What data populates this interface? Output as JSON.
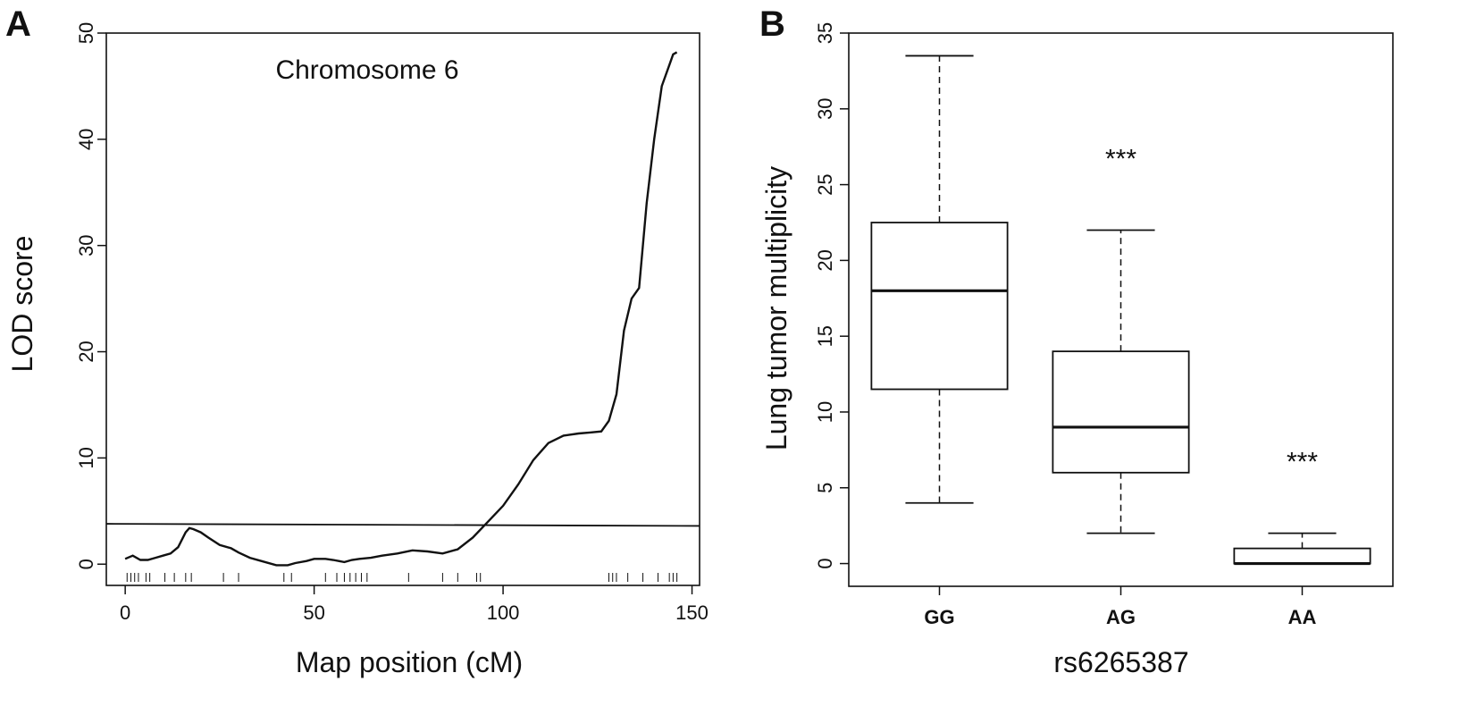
{
  "panels": {
    "A": {
      "label": "A"
    },
    "B": {
      "label": "B"
    }
  },
  "chart_data": [
    {
      "type": "line",
      "panel": "A",
      "annotation": "Chromosome 6",
      "xlabel": "Map position (cM)",
      "ylabel": "LOD score",
      "xlim": [
        -5,
        152
      ],
      "ylim": [
        -2,
        50
      ],
      "xticks": [
        0,
        50,
        100,
        150
      ],
      "yticks": [
        0,
        10,
        20,
        30,
        40,
        50
      ],
      "grid": false,
      "threshold": {
        "y_start": 3.8,
        "y_end": 3.6
      },
      "series": [
        {
          "x": [
            0,
            2,
            4,
            6,
            8,
            10,
            12,
            14,
            16,
            17,
            18,
            20,
            22,
            25,
            28,
            30,
            33,
            36,
            40,
            43,
            45,
            48,
            50,
            53,
            55,
            58,
            60,
            62,
            65,
            68,
            72,
            76,
            80,
            84,
            88,
            92,
            96,
            100,
            104,
            108,
            112,
            116,
            120,
            123,
            126,
            128,
            130,
            132,
            134,
            136,
            138,
            140,
            142,
            144,
            145,
            146
          ],
          "y": [
            0.5,
            0.8,
            0.4,
            0.4,
            0.6,
            0.8,
            1.0,
            1.6,
            3.0,
            3.4,
            3.3,
            3.0,
            2.5,
            1.8,
            1.5,
            1.1,
            0.6,
            0.3,
            -0.1,
            -0.1,
            0.1,
            0.3,
            0.5,
            0.5,
            0.4,
            0.2,
            0.4,
            0.5,
            0.6,
            0.8,
            1.0,
            1.3,
            1.2,
            1.0,
            1.4,
            2.5,
            4.0,
            5.5,
            7.5,
            9.8,
            11.4,
            12.1,
            12.3,
            12.4,
            12.5,
            13.5,
            16.0,
            22.0,
            25.0,
            26.0,
            34.0,
            40.0,
            45.0,
            47.0,
            48.0,
            48.2
          ]
        }
      ],
      "rug": [
        0.5,
        1.5,
        2.5,
        3.5,
        5.5,
        6.5,
        10.5,
        13,
        16,
        17.5,
        26,
        30,
        42,
        44,
        53,
        56,
        58,
        59.5,
        61,
        62.5,
        64,
        75,
        84,
        88,
        93,
        94,
        128,
        129,
        130,
        133,
        137,
        141,
        144,
        145,
        146
      ]
    },
    {
      "type": "box",
      "panel": "B",
      "xlabel": "rs6265387",
      "ylabel": "Lung tumor multiplicity",
      "ylim": [
        -1.5,
        35
      ],
      "yticks": [
        0,
        5,
        10,
        15,
        20,
        25,
        30,
        35
      ],
      "grid": false,
      "categories": [
        "GG",
        "AG",
        "AA"
      ],
      "boxes": [
        {
          "whisker_low": 4.0,
          "q1": 11.5,
          "median": 18.0,
          "q3": 22.5,
          "whisker_high": 33.5,
          "significance": ""
        },
        {
          "whisker_low": 2.0,
          "q1": 6.0,
          "median": 9.0,
          "q3": 14.0,
          "whisker_high": 22.0,
          "significance": "***"
        },
        {
          "whisker_low": 0.0,
          "q1": 0.0,
          "median": 0.0,
          "q3": 1.0,
          "whisker_high": 2.0,
          "significance": "***"
        }
      ]
    }
  ]
}
